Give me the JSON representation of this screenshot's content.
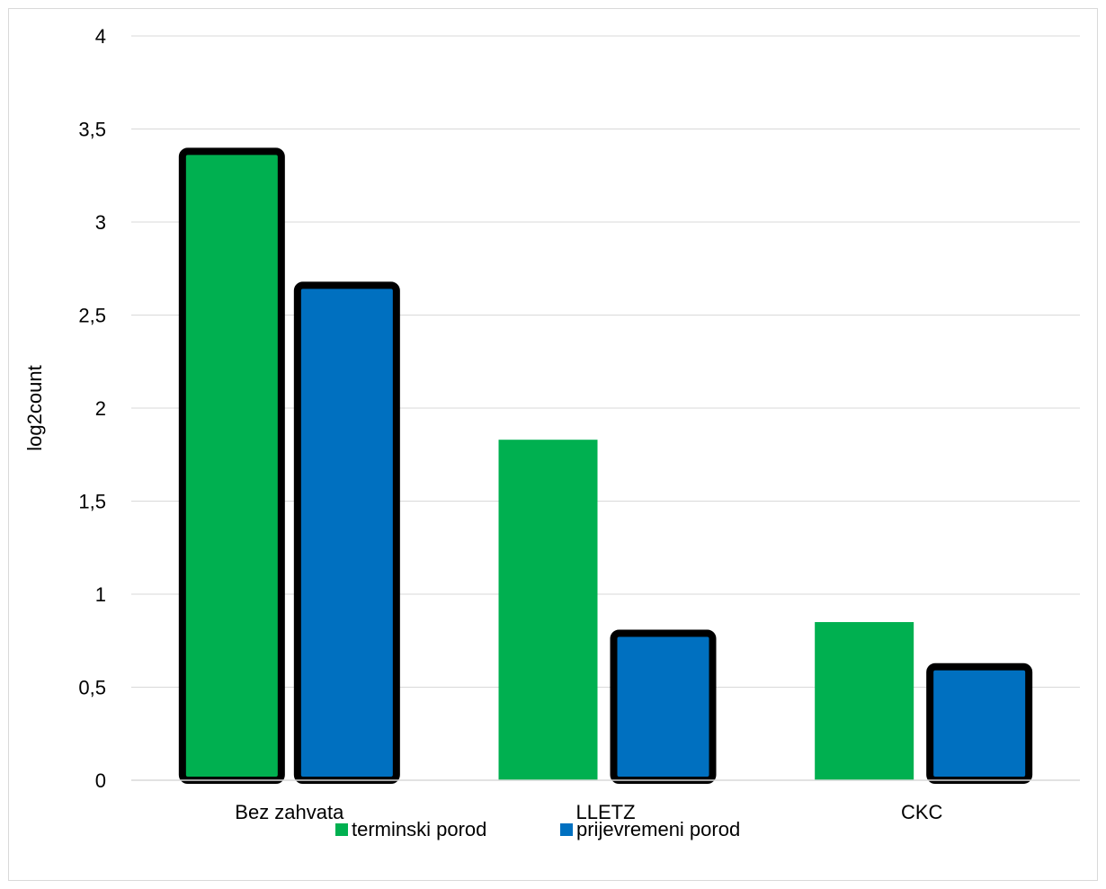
{
  "chart_data": {
    "type": "bar",
    "title": "",
    "xlabel": "",
    "ylabel": "log2count",
    "ylim": [
      0,
      4
    ],
    "yticks": [
      0,
      0.5,
      1,
      1.5,
      2,
      2.5,
      3,
      3.5,
      4
    ],
    "ytick_labels": [
      "0",
      "0,5",
      "1",
      "1,5",
      "2",
      "2,5",
      "3",
      "3,5",
      "4"
    ],
    "grid": true,
    "legend_position": "bottom",
    "categories": [
      "Bez zahvata",
      "LLETZ",
      "CKC"
    ],
    "series": [
      {
        "name": "terminski porod",
        "color": "#00b050",
        "values": [
          3.38,
          1.83,
          0.85
        ],
        "outlined": [
          true,
          false,
          false
        ]
      },
      {
        "name": "prijevremeni porod",
        "color": "#0070c0",
        "values": [
          2.66,
          0.79,
          0.61
        ],
        "outlined": [
          true,
          true,
          true
        ]
      }
    ]
  }
}
